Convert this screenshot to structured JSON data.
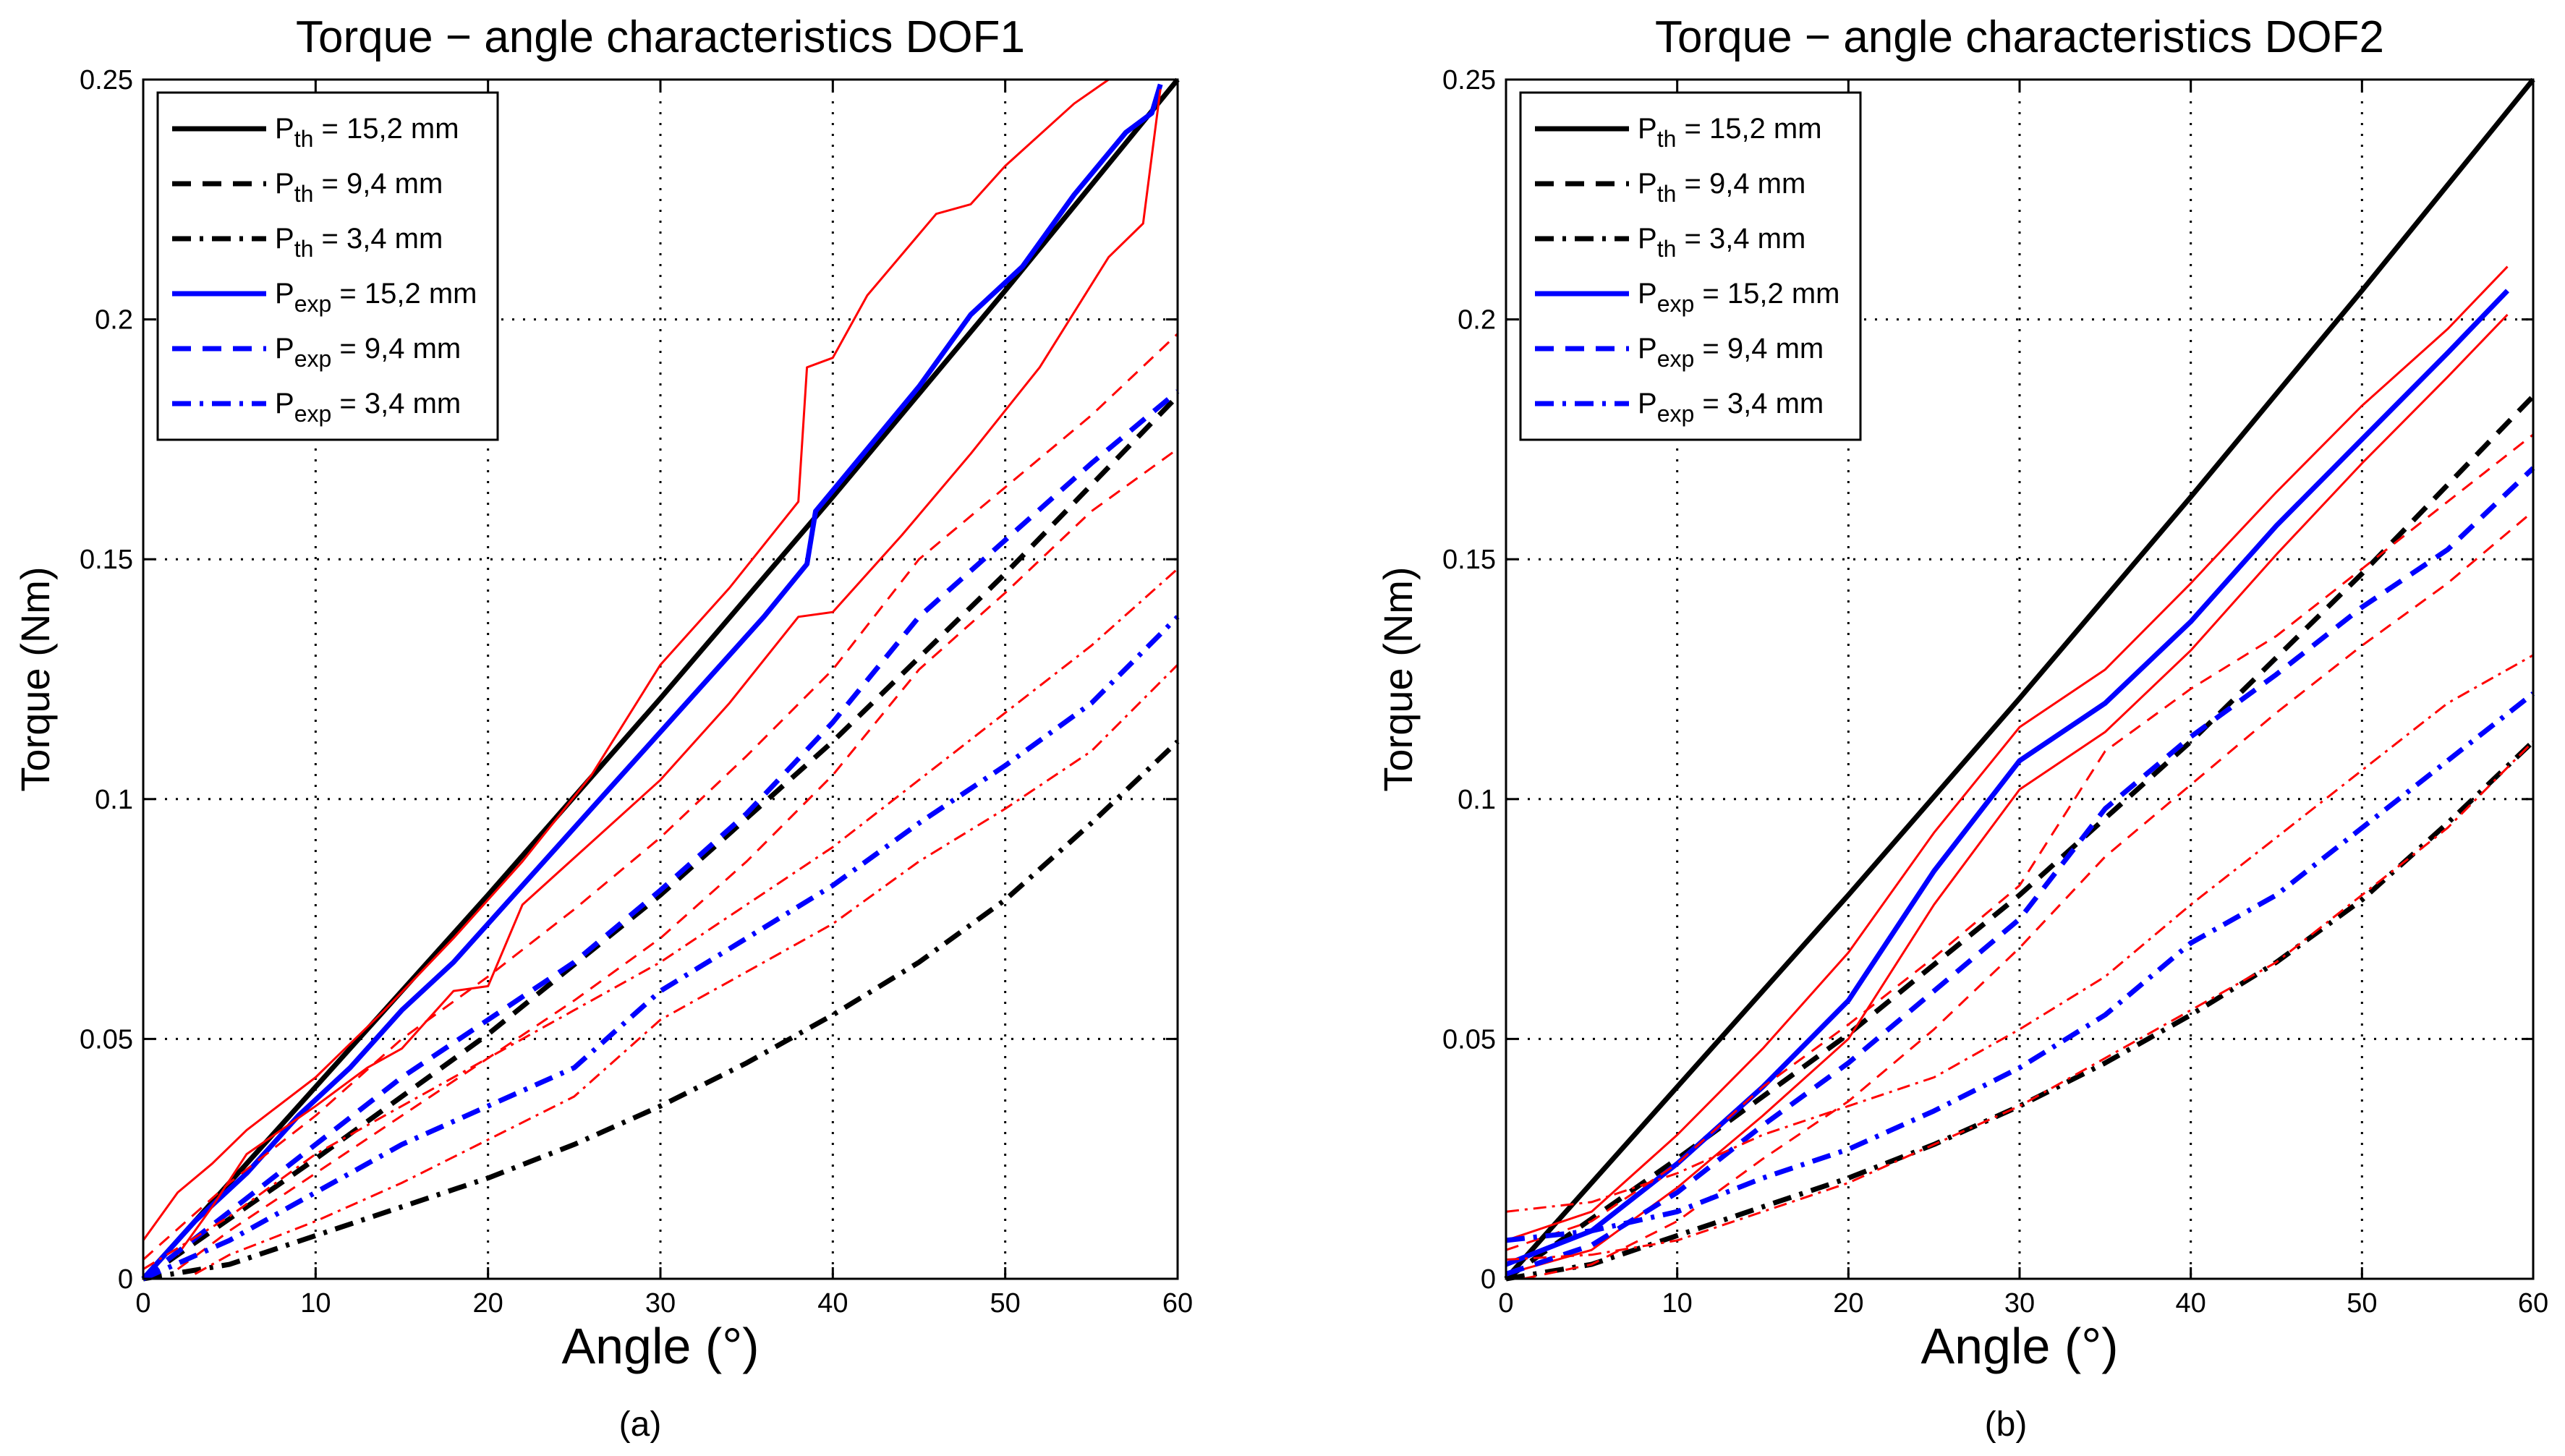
{
  "chart_data": [
    {
      "type": "line",
      "panel_label": "(a)",
      "title": "Torque − angle characteristics DOF1",
      "xlabel": "Angle (°)",
      "ylabel": "Torque (Nm)",
      "xlim": [
        0,
        60
      ],
      "ylim": [
        0,
        0.25
      ],
      "xticks": [
        0,
        10,
        20,
        30,
        40,
        50,
        60
      ],
      "xtick_labels": [
        "0",
        "10",
        "20",
        "30",
        "40",
        "50",
        "60"
      ],
      "yticks": [
        0,
        0.05,
        0.1,
        0.15,
        0.2,
        0.25
      ],
      "ytick_labels": [
        "0",
        "0.05",
        "0.1",
        "0.15",
        "0.2",
        "0.25"
      ],
      "grid": true,
      "legend_position": "top-left",
      "legend": [
        {
          "base": "P",
          "sub": "th",
          "rest": "= 15,2 mm",
          "color": "#000000",
          "style": "solid"
        },
        {
          "base": "P",
          "sub": "th",
          "rest": "= 9,4 mm",
          "color": "#000000",
          "style": "dashed"
        },
        {
          "base": "P",
          "sub": "th",
          "rest": "= 3,4 mm",
          "color": "#000000",
          "style": "dashdot"
        },
        {
          "base": "P",
          "sub": "exp",
          "rest": "= 15,2 mm",
          "color": "#0000ff",
          "style": "solid"
        },
        {
          "base": "P",
          "sub": "exp",
          "rest": "= 9,4 mm",
          "color": "#0000ff",
          "style": "dashed"
        },
        {
          "base": "P",
          "sub": "exp",
          "rest": "= 3,4 mm",
          "color": "#0000ff",
          "style": "dashdot"
        }
      ],
      "series": [
        {
          "name": "P_th = 15,2 mm",
          "color": "#000000",
          "style": "solid",
          "width": 7,
          "x": [
            0,
            10,
            20,
            30,
            40,
            50,
            60
          ],
          "y": [
            0,
            0.04,
            0.08,
            0.121,
            0.163,
            0.206,
            0.25
          ]
        },
        {
          "name": "P_th = 9,4 mm",
          "color": "#000000",
          "style": "dashed",
          "width": 7,
          "x": [
            0,
            10,
            20,
            30,
            40,
            50,
            60
          ],
          "y": [
            0,
            0.025,
            0.051,
            0.08,
            0.112,
            0.147,
            0.184
          ]
        },
        {
          "name": "P_th = 3,4 mm",
          "color": "#000000",
          "style": "dashdot",
          "width": 7,
          "x": [
            0,
            5,
            10,
            15,
            20,
            25,
            30,
            35,
            40,
            45,
            50,
            55,
            60
          ],
          "y": [
            0,
            0.003,
            0.009,
            0.015,
            0.021,
            0.028,
            0.036,
            0.045,
            0.055,
            0.066,
            0.079,
            0.095,
            0.112
          ]
        },
        {
          "name": "P_exp = 15,2 mm",
          "color": "#0000ff",
          "style": "solid",
          "width": 7,
          "x": [
            0,
            3,
            6,
            9,
            12,
            15,
            18,
            21,
            24,
            27,
            30,
            33,
            36,
            38.5,
            39,
            42,
            45,
            48,
            51,
            54,
            57,
            58.5,
            59
          ],
          "y": [
            0,
            0.012,
            0.022,
            0.034,
            0.044,
            0.056,
            0.066,
            0.078,
            0.09,
            0.102,
            0.114,
            0.126,
            0.138,
            0.149,
            0.16,
            0.173,
            0.186,
            0.201,
            0.211,
            0.226,
            0.239,
            0.243,
            0.249
          ]
        },
        {
          "name": "P_exp = 15,2 mm upper bound",
          "color": "#ff0000",
          "style": "solid",
          "width": 3,
          "x": [
            0,
            2,
            4,
            6,
            10,
            14,
            18,
            22,
            26,
            30,
            34,
            38,
            38.5,
            40,
            42,
            46,
            48,
            50,
            54,
            56,
            58,
            60
          ],
          "y": [
            0.008,
            0.018,
            0.024,
            0.031,
            0.042,
            0.056,
            0.071,
            0.087,
            0.105,
            0.128,
            0.144,
            0.162,
            0.19,
            0.192,
            0.205,
            0.222,
            0.224,
            0.232,
            0.245,
            0.25,
            0.25,
            0.25
          ]
        },
        {
          "name": "P_exp = 15,2 mm lower bound",
          "color": "#ff0000",
          "style": "solid",
          "width": 3,
          "x": [
            2,
            4,
            6,
            10,
            13,
            15,
            18,
            20,
            22,
            26,
            30,
            34,
            38,
            40,
            44,
            48,
            52,
            56,
            58,
            59
          ],
          "y": [
            0.005,
            0.015,
            0.026,
            0.036,
            0.044,
            0.048,
            0.06,
            0.061,
            0.078,
            0.091,
            0.104,
            0.12,
            0.138,
            0.139,
            0.155,
            0.172,
            0.19,
            0.213,
            0.22,
            0.248
          ]
        },
        {
          "name": "P_exp = 9,4 mm",
          "color": "#0000ff",
          "style": "dashed",
          "width": 7,
          "x": [
            0,
            5,
            10,
            15,
            20,
            25,
            30,
            35,
            40,
            45,
            50,
            55,
            60
          ],
          "y": [
            0,
            0.014,
            0.028,
            0.042,
            0.054,
            0.066,
            0.081,
            0.097,
            0.116,
            0.138,
            0.154,
            0.17,
            0.185
          ]
        },
        {
          "name": "P_exp = 9,4 mm upper bound",
          "color": "#ff0000",
          "style": "dashed",
          "width": 3,
          "x": [
            0,
            5,
            10,
            15,
            20,
            25,
            30,
            35,
            40,
            45,
            50,
            55,
            60
          ],
          "y": [
            0.004,
            0.02,
            0.034,
            0.05,
            0.063,
            0.077,
            0.092,
            0.109,
            0.127,
            0.15,
            0.165,
            0.18,
            0.197
          ]
        },
        {
          "name": "P_exp = 9,4 mm lower bound",
          "color": "#ff0000",
          "style": "dashed",
          "width": 3,
          "x": [
            2,
            5,
            10,
            15,
            20,
            25,
            30,
            35,
            40,
            45,
            50,
            55,
            60
          ],
          "y": [
            0.002,
            0.01,
            0.022,
            0.034,
            0.046,
            0.058,
            0.071,
            0.087,
            0.105,
            0.127,
            0.143,
            0.16,
            0.173
          ]
        },
        {
          "name": "P_exp = 3,4 mm",
          "color": "#0000ff",
          "style": "dashdot",
          "width": 7,
          "x": [
            0,
            5,
            10,
            15,
            20,
            25,
            30,
            35,
            40,
            45,
            50,
            55,
            60
          ],
          "y": [
            0,
            0.008,
            0.018,
            0.028,
            0.036,
            0.044,
            0.06,
            0.071,
            0.082,
            0.095,
            0.107,
            0.12,
            0.138
          ]
        },
        {
          "name": "P_exp = 3,4 mm upper bound",
          "color": "#ff0000",
          "style": "dashdot",
          "width": 3,
          "x": [
            0,
            5,
            10,
            15,
            20,
            25,
            30,
            35,
            40,
            45,
            50,
            55,
            60
          ],
          "y": [
            0.002,
            0.013,
            0.026,
            0.036,
            0.046,
            0.056,
            0.066,
            0.078,
            0.09,
            0.104,
            0.118,
            0.132,
            0.148
          ]
        },
        {
          "name": "P_exp = 3,4 mm lower bound",
          "color": "#ff0000",
          "style": "dashdot",
          "width": 3,
          "x": [
            3,
            5,
            10,
            15,
            20,
            25,
            30,
            35,
            40,
            45,
            50,
            55,
            60
          ],
          "y": [
            0.001,
            0.005,
            0.012,
            0.02,
            0.029,
            0.038,
            0.054,
            0.064,
            0.074,
            0.087,
            0.098,
            0.11,
            0.128
          ]
        }
      ]
    },
    {
      "type": "line",
      "panel_label": "(b)",
      "title": "Torque − angle characteristics DOF2",
      "xlabel": "Angle (°)",
      "ylabel": "Torque (Nm)",
      "xlim": [
        0,
        60
      ],
      "ylim": [
        0,
        0.25
      ],
      "xticks": [
        0,
        10,
        20,
        30,
        40,
        50,
        60
      ],
      "xtick_labels": [
        "0",
        "10",
        "20",
        "30",
        "40",
        "50",
        "60"
      ],
      "yticks": [
        0,
        0.05,
        0.1,
        0.15,
        0.2,
        0.25
      ],
      "ytick_labels": [
        "0",
        "0.05",
        "0.1",
        "0.15",
        "0.2",
        "0.25"
      ],
      "grid": true,
      "legend_position": "top-left",
      "legend": [
        {
          "base": "P",
          "sub": "th",
          "rest": "= 15,2 mm",
          "color": "#000000",
          "style": "solid"
        },
        {
          "base": "P",
          "sub": "th",
          "rest": "= 9,4 mm",
          "color": "#000000",
          "style": "dashed"
        },
        {
          "base": "P",
          "sub": "th",
          "rest": "= 3,4 mm",
          "color": "#000000",
          "style": "dashdot"
        },
        {
          "base": "P",
          "sub": "exp",
          "rest": "= 15,2 mm",
          "color": "#0000ff",
          "style": "solid"
        },
        {
          "base": "P",
          "sub": "exp",
          "rest": "= 9,4 mm",
          "color": "#0000ff",
          "style": "dashed"
        },
        {
          "base": "P",
          "sub": "exp",
          "rest": "= 3,4 mm",
          "color": "#0000ff",
          "style": "dashdot"
        }
      ],
      "series": [
        {
          "name": "P_th = 15,2 mm",
          "color": "#000000",
          "style": "solid",
          "width": 7,
          "x": [
            0,
            10,
            20,
            30,
            40,
            50,
            60
          ],
          "y": [
            0,
            0.04,
            0.08,
            0.121,
            0.163,
            0.206,
            0.25
          ]
        },
        {
          "name": "P_th = 9,4 mm",
          "color": "#000000",
          "style": "dashed",
          "width": 7,
          "x": [
            0,
            10,
            20,
            30,
            40,
            50,
            60
          ],
          "y": [
            0,
            0.025,
            0.051,
            0.08,
            0.112,
            0.147,
            0.184
          ]
        },
        {
          "name": "P_th = 3,4 mm",
          "color": "#000000",
          "style": "dashdot",
          "width": 7,
          "x": [
            0,
            5,
            10,
            15,
            20,
            25,
            30,
            35,
            40,
            45,
            50,
            55,
            60
          ],
          "y": [
            0,
            0.003,
            0.009,
            0.015,
            0.021,
            0.028,
            0.036,
            0.045,
            0.055,
            0.066,
            0.079,
            0.095,
            0.112
          ]
        },
        {
          "name": "P_exp = 15,2 mm",
          "color": "#0000ff",
          "style": "solid",
          "width": 7,
          "x": [
            0,
            5,
            10,
            15,
            20,
            25,
            30,
            35,
            40,
            45,
            50,
            55,
            58.5
          ],
          "y": [
            0.003,
            0.01,
            0.024,
            0.04,
            0.058,
            0.085,
            0.108,
            0.12,
            0.137,
            0.157,
            0.175,
            0.193,
            0.206
          ]
        },
        {
          "name": "P_exp = 15,2 mm upper bound",
          "color": "#ff0000",
          "style": "solid",
          "width": 3,
          "x": [
            0,
            5,
            10,
            15,
            20,
            25,
            30,
            35,
            40,
            45,
            50,
            55,
            58.5
          ],
          "y": [
            0.008,
            0.014,
            0.03,
            0.048,
            0.068,
            0.093,
            0.115,
            0.127,
            0.145,
            0.164,
            0.182,
            0.198,
            0.211
          ]
        },
        {
          "name": "P_exp = 15,2 mm lower bound",
          "color": "#ff0000",
          "style": "solid",
          "width": 3,
          "x": [
            0,
            5,
            10,
            15,
            20,
            25,
            30,
            35,
            40,
            45,
            50,
            55,
            58.5
          ],
          "y": [
            0.001,
            0.006,
            0.019,
            0.034,
            0.05,
            0.078,
            0.102,
            0.114,
            0.131,
            0.151,
            0.17,
            0.188,
            0.201
          ]
        },
        {
          "name": "P_exp = 9,4 mm",
          "color": "#0000ff",
          "style": "dashed",
          "width": 7,
          "x": [
            0,
            5,
            10,
            15,
            20,
            25,
            30,
            35,
            40,
            45,
            50,
            55,
            60
          ],
          "y": [
            0.001,
            0.007,
            0.018,
            0.032,
            0.045,
            0.06,
            0.075,
            0.098,
            0.113,
            0.126,
            0.14,
            0.152,
            0.169
          ]
        },
        {
          "name": "P_exp = 9,4 mm upper bound",
          "color": "#ff0000",
          "style": "dashed",
          "width": 3,
          "x": [
            0,
            5,
            10,
            15,
            20,
            25,
            30,
            35,
            40,
            45,
            50,
            55,
            60
          ],
          "y": [
            0.006,
            0.012,
            0.024,
            0.04,
            0.053,
            0.067,
            0.082,
            0.11,
            0.123,
            0.134,
            0.148,
            0.162,
            0.176
          ]
        },
        {
          "name": "P_exp = 9,4 mm lower bound",
          "color": "#ff0000",
          "style": "dashed",
          "width": 3,
          "x": [
            1,
            5,
            10,
            15,
            20,
            25,
            30,
            35,
            40,
            45,
            50,
            55,
            60
          ],
          "y": [
            0.0,
            0.003,
            0.012,
            0.025,
            0.037,
            0.052,
            0.069,
            0.088,
            0.103,
            0.118,
            0.132,
            0.145,
            0.16
          ]
        },
        {
          "name": "P_exp = 3,4 mm",
          "color": "#0000ff",
          "style": "dashdot",
          "width": 7,
          "x": [
            0,
            5,
            10,
            15,
            20,
            25,
            30,
            35,
            40,
            45,
            50,
            55,
            60
          ],
          "y": [
            0.008,
            0.01,
            0.014,
            0.021,
            0.027,
            0.035,
            0.044,
            0.055,
            0.07,
            0.08,
            0.094,
            0.108,
            0.122
          ]
        },
        {
          "name": "P_exp = 3,4 mm upper bound",
          "color": "#ff0000",
          "style": "dashdot",
          "width": 3,
          "x": [
            0,
            5,
            10,
            15,
            20,
            25,
            30,
            35,
            40,
            45,
            50,
            55,
            60
          ],
          "y": [
            0.014,
            0.016,
            0.022,
            0.03,
            0.036,
            0.042,
            0.052,
            0.063,
            0.078,
            0.092,
            0.106,
            0.12,
            0.13
          ]
        },
        {
          "name": "P_exp = 3,4 mm lower bound",
          "color": "#ff0000",
          "style": "dashdot",
          "width": 3,
          "x": [
            0,
            5,
            10,
            15,
            20,
            25,
            30,
            35,
            40,
            45,
            50,
            55,
            60
          ],
          "y": [
            0.004,
            0.005,
            0.008,
            0.014,
            0.02,
            0.028,
            0.036,
            0.046,
            0.056,
            0.066,
            0.08,
            0.094,
            0.112
          ]
        }
      ]
    }
  ]
}
